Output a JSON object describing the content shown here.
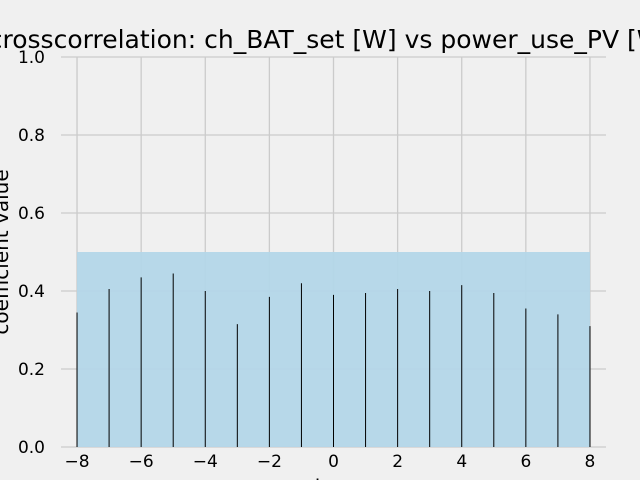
{
  "chart_data": {
    "type": "bar",
    "title": "crosscorrelation: ch_BAT_set [W] vs power_use_PV [W]",
    "xlabel": "lag",
    "ylabel": "coefficient value",
    "xlim": [
      -8.5,
      8.5
    ],
    "ylim": [
      0.0,
      1.0
    ],
    "x_ticks": [
      -8,
      -6,
      -4,
      -2,
      0,
      2,
      4,
      6,
      8
    ],
    "x_tick_labels": [
      "−8",
      "−6",
      "−4",
      "−2",
      "0",
      "2",
      "4",
      "6",
      "8"
    ],
    "y_ticks": [
      0.0,
      0.2,
      0.4,
      0.6,
      0.8,
      1.0
    ],
    "y_tick_labels": [
      "0.0",
      "0.2",
      "0.4",
      "0.6",
      "0.8",
      "1.0"
    ],
    "grid": true,
    "lags": [
      -8,
      -7,
      -6,
      -5,
      -4,
      -3,
      -2,
      -1,
      0,
      1,
      2,
      3,
      4,
      5,
      6,
      7,
      8
    ],
    "values": [
      0.345,
      0.405,
      0.435,
      0.445,
      0.4,
      0.315,
      0.385,
      0.42,
      0.39,
      0.395,
      0.405,
      0.4,
      0.415,
      0.395,
      0.355,
      0.34,
      0.31
    ],
    "confidence_band": {
      "x": [
        -8,
        8
      ],
      "y": [
        0.0,
        0.5
      ]
    },
    "colors": {
      "background": "#f0f0f0",
      "grid": "#cbcbcb",
      "bars": "#000000",
      "band": "#b3d6e8"
    }
  }
}
